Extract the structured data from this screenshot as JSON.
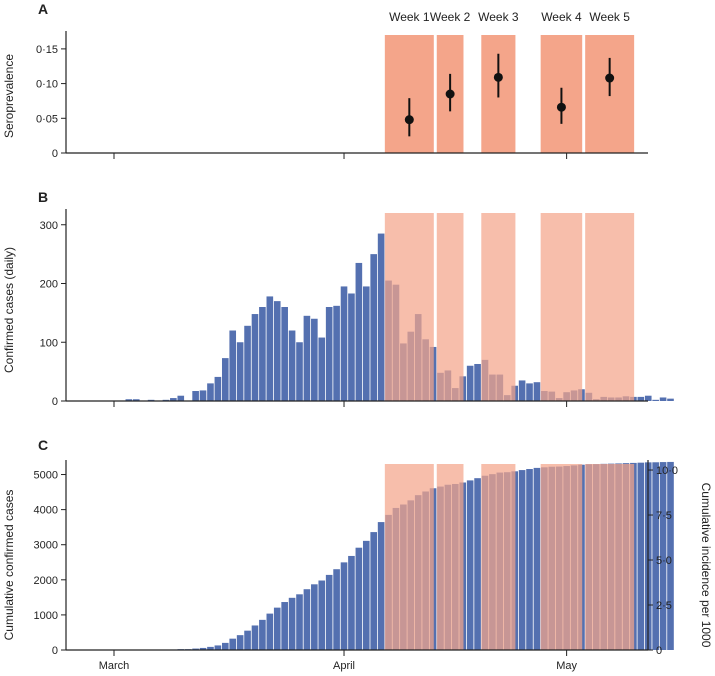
{
  "chart_data": [
    {
      "panel": "A",
      "type": "scatter",
      "ylabel": "Seroprevalence",
      "ylim": [
        0,
        0.17
      ],
      "yticks": [
        0,
        0.05,
        0.1,
        0.15
      ],
      "ytick_labels": [
        "0",
        "0·05",
        "0·10",
        "0·15"
      ],
      "weeks": [
        {
          "label": "Week 1",
          "start_day": 37,
          "end_day": 43,
          "value": 0.048,
          "ci": [
            0.024,
            0.079
          ]
        },
        {
          "label": "Week 2",
          "start_day": 44,
          "end_day": 47,
          "value": 0.085,
          "ci": [
            0.06,
            0.114
          ]
        },
        {
          "label": "Week 3",
          "start_day": 50,
          "end_day": 54,
          "value": 0.109,
          "ci": [
            0.08,
            0.143
          ]
        },
        {
          "label": "Week 4",
          "start_day": 58,
          "end_day": 63,
          "value": 0.066,
          "ci": [
            0.042,
            0.094
          ]
        },
        {
          "label": "Week 5",
          "start_day": 64,
          "end_day": 70,
          "value": 0.108,
          "ci": [
            0.082,
            0.137
          ]
        }
      ]
    },
    {
      "panel": "B",
      "type": "bar",
      "ylabel": "Confirmed cases (daily)",
      "ylim": [
        0,
        320
      ],
      "yticks": [
        0,
        100,
        200,
        300
      ],
      "ytick_labels": [
        "0",
        "100",
        "200",
        "300"
      ],
      "x_start_day": 2,
      "values": [
        3,
        3,
        0,
        2,
        0,
        2,
        5,
        9,
        0,
        17,
        18,
        30,
        41,
        73,
        120,
        100,
        128,
        148,
        160,
        178,
        170,
        160,
        120,
        100,
        145,
        140,
        108,
        160,
        162,
        195,
        183,
        235,
        195,
        250,
        285,
        205,
        198,
        98,
        118,
        148,
        105,
        92,
        48,
        52,
        22,
        42,
        60,
        63,
        70,
        45,
        45,
        10,
        26,
        35,
        30,
        32,
        17,
        16,
        5,
        15,
        18,
        20,
        14,
        3,
        7,
        6,
        6,
        8,
        7,
        7,
        9,
        2,
        6,
        4
      ]
    },
    {
      "panel": "C",
      "type": "bar",
      "ylabel": "Cumulative confirmed cases",
      "y2label": "Cumulative incidence per 1000",
      "ylim": [
        0,
        5300
      ],
      "yticks": [
        0,
        1000,
        2000,
        3000,
        4000,
        5000
      ],
      "ytick_labels": [
        "0",
        "1000",
        "2000",
        "3000",
        "4000",
        "5000"
      ],
      "y2ticks": [
        0,
        2.5,
        5.0,
        7.5,
        10.0
      ],
      "y2tick_labels": [
        "0",
        "2·5",
        "5·0",
        "7·5",
        "10·0"
      ],
      "y2_per_unit": 0.00195,
      "x_start_day": 2,
      "note": "values are the running total of panel B daily counts"
    }
  ],
  "xaxis": {
    "month_ticks": [
      {
        "label": "March",
        "day": 0
      },
      {
        "label": "April",
        "day": 31
      },
      {
        "label": "May",
        "day": 61
      }
    ]
  },
  "colors": {
    "bar": "#5470b0",
    "week_band": "#f4a58a",
    "bar_in_band": "#8a5f95",
    "axis": "#222222",
    "point": "#111111"
  }
}
